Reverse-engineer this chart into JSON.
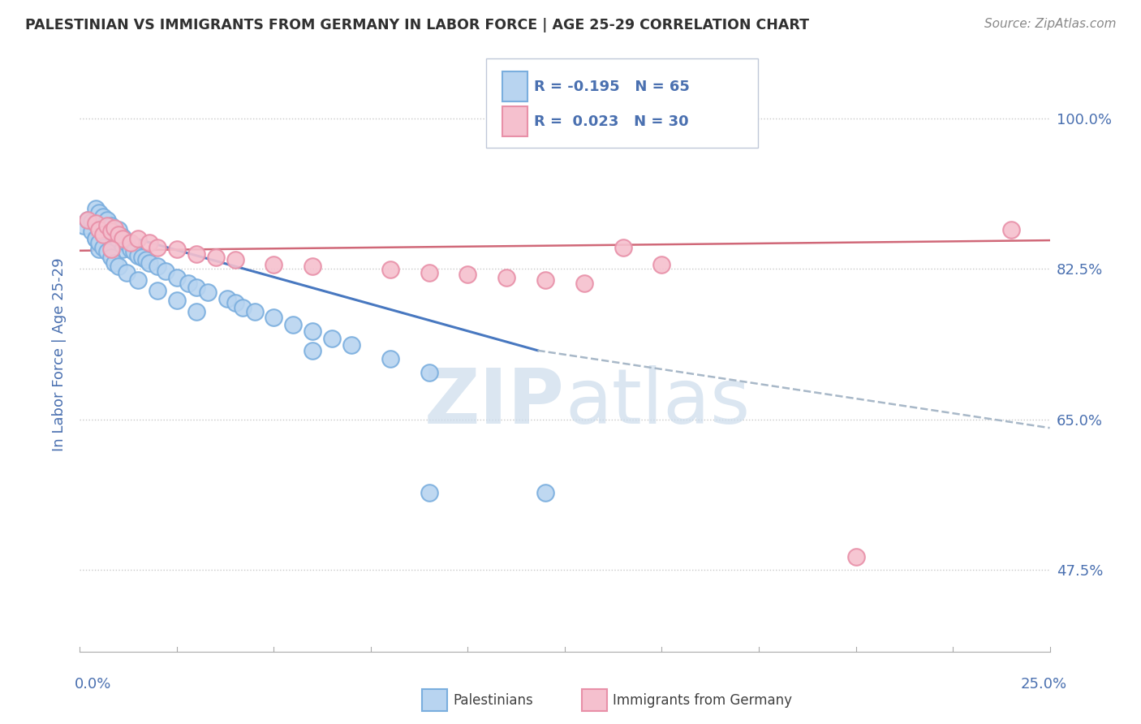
{
  "title": "PALESTINIAN VS IMMIGRANTS FROM GERMANY IN LABOR FORCE | AGE 25-29 CORRELATION CHART",
  "source": "Source: ZipAtlas.com",
  "ylabel": "In Labor Force | Age 25-29",
  "y_tick_labels": [
    "47.5%",
    "65.0%",
    "82.5%",
    "100.0%"
  ],
  "y_tick_values": [
    0.475,
    0.65,
    0.825,
    1.0
  ],
  "xlim": [
    0.0,
    0.25
  ],
  "ylim": [
    0.38,
    1.07
  ],
  "legend_line1": "R = -0.195   N = 65",
  "legend_line2": "R =  0.023   N = 30",
  "blue_edge": "#7aaede",
  "blue_face": "#b8d4f0",
  "pink_edge": "#e890a8",
  "pink_face": "#f5c0ce",
  "trend_blue": "#4878c0",
  "trend_pink": "#d06878",
  "trend_dash": "#a8b8c8",
  "watermark_color": "#ccdcec",
  "title_color": "#303030",
  "label_color": "#4a70b0",
  "blue_x": [
    0.001,
    0.002,
    0.003,
    0.003,
    0.004,
    0.004,
    0.004,
    0.005,
    0.005,
    0.005,
    0.005,
    0.006,
    0.006,
    0.006,
    0.007,
    0.007,
    0.007,
    0.008,
    0.008,
    0.008,
    0.009,
    0.009,
    0.01,
    0.01,
    0.011,
    0.011,
    0.012,
    0.013,
    0.014,
    0.015,
    0.016,
    0.017,
    0.018,
    0.02,
    0.022,
    0.025,
    0.028,
    0.03,
    0.033,
    0.038,
    0.04,
    0.042,
    0.045,
    0.05,
    0.055,
    0.06,
    0.065,
    0.07,
    0.08,
    0.09,
    0.004,
    0.005,
    0.006,
    0.007,
    0.008,
    0.009,
    0.01,
    0.012,
    0.015,
    0.02,
    0.025,
    0.03,
    0.06,
    0.09,
    0.12
  ],
  "blue_y": [
    0.875,
    0.882,
    0.88,
    0.868,
    0.895,
    0.878,
    0.86,
    0.89,
    0.875,
    0.862,
    0.848,
    0.885,
    0.87,
    0.855,
    0.882,
    0.868,
    0.852,
    0.875,
    0.862,
    0.848,
    0.868,
    0.852,
    0.87,
    0.855,
    0.862,
    0.848,
    0.855,
    0.848,
    0.845,
    0.84,
    0.838,
    0.835,
    0.832,
    0.828,
    0.822,
    0.815,
    0.808,
    0.803,
    0.798,
    0.79,
    0.785,
    0.78,
    0.775,
    0.768,
    0.76,
    0.752,
    0.744,
    0.736,
    0.72,
    0.704,
    0.86,
    0.855,
    0.85,
    0.845,
    0.838,
    0.832,
    0.828,
    0.82,
    0.812,
    0.8,
    0.788,
    0.775,
    0.73,
    0.565,
    0.565
  ],
  "pink_x": [
    0.002,
    0.004,
    0.005,
    0.006,
    0.007,
    0.008,
    0.009,
    0.01,
    0.011,
    0.013,
    0.015,
    0.018,
    0.02,
    0.025,
    0.03,
    0.035,
    0.04,
    0.05,
    0.06,
    0.08,
    0.09,
    0.1,
    0.11,
    0.12,
    0.13,
    0.14,
    0.15,
    0.2,
    0.24,
    0.008
  ],
  "pink_y": [
    0.882,
    0.878,
    0.87,
    0.865,
    0.875,
    0.868,
    0.872,
    0.865,
    0.86,
    0.855,
    0.86,
    0.855,
    0.85,
    0.848,
    0.842,
    0.838,
    0.835,
    0.83,
    0.828,
    0.824,
    0.82,
    0.818,
    0.815,
    0.812,
    0.808,
    0.85,
    0.83,
    0.49,
    0.87,
    0.848
  ],
  "blue_trend_x": [
    0.0,
    0.118
  ],
  "blue_trend_y": [
    0.878,
    0.73
  ],
  "dash_trend_x": [
    0.118,
    0.25
  ],
  "dash_trend_y": [
    0.73,
    0.64
  ],
  "pink_trend_x": [
    0.0,
    0.25
  ],
  "pink_trend_y": [
    0.846,
    0.858
  ]
}
